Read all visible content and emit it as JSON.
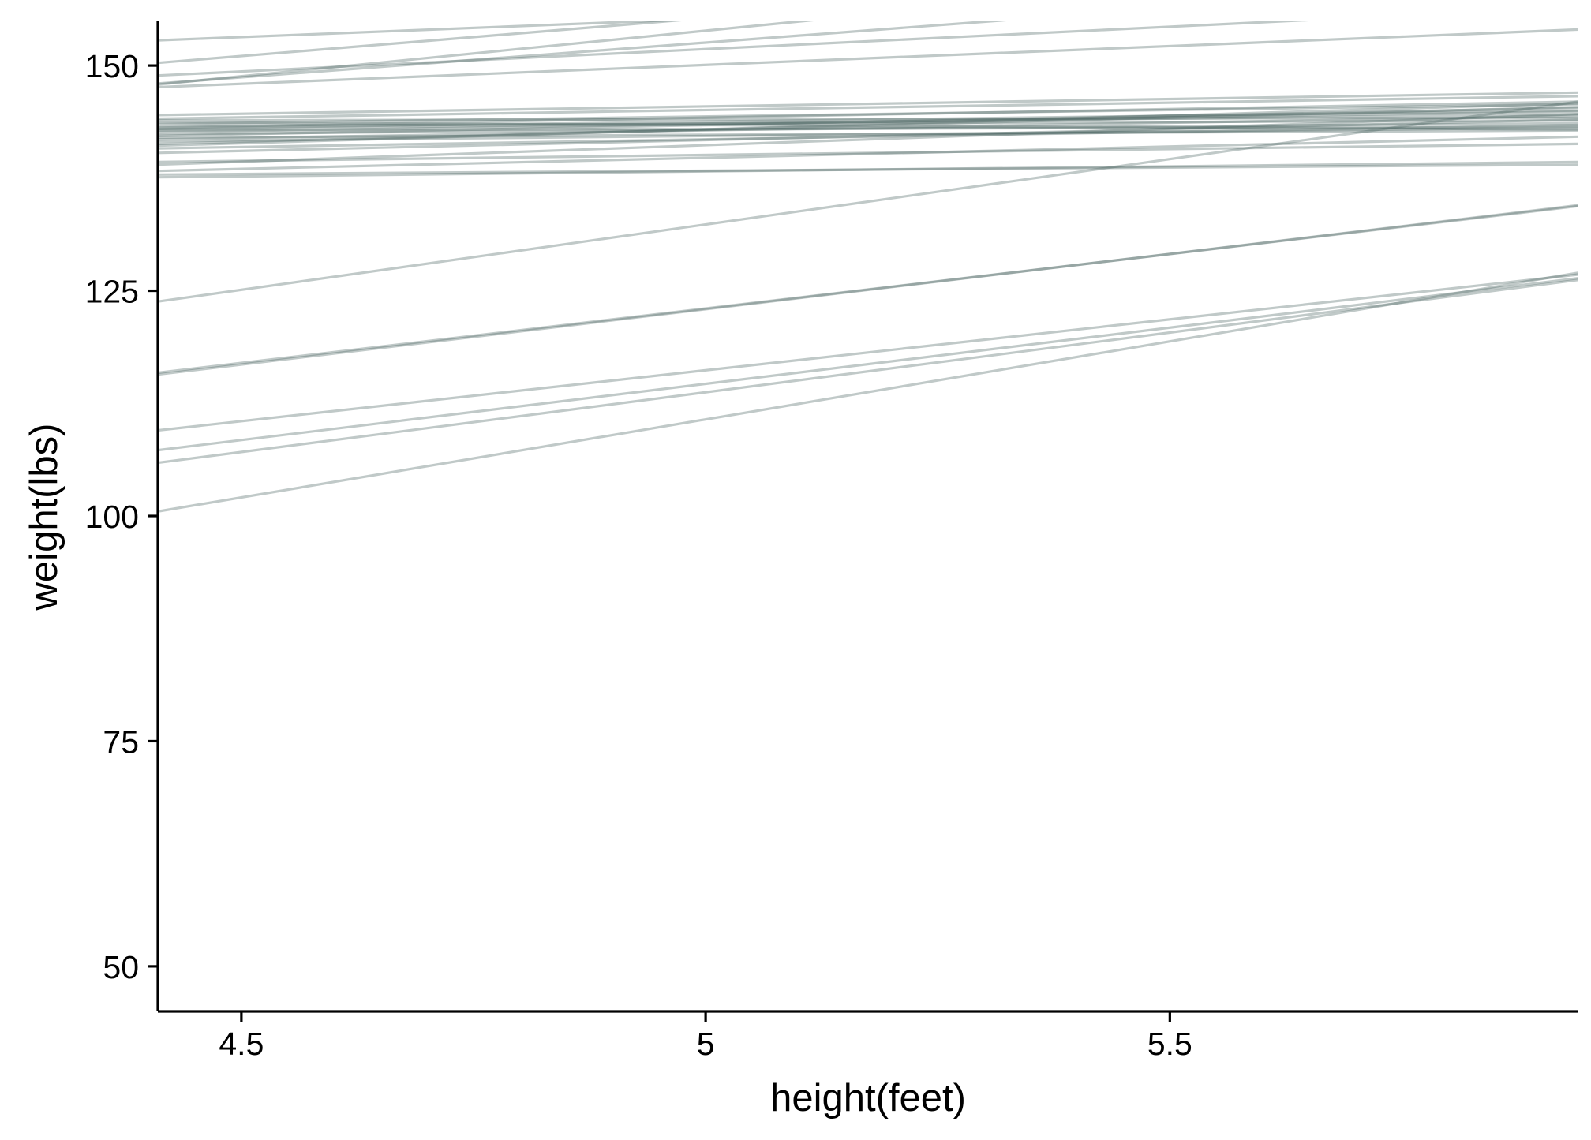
{
  "chart_data": {
    "type": "line",
    "title": "",
    "xlabel": "height(feet)",
    "ylabel": "weight(lbs)",
    "xlim": [
      4.41,
      5.94
    ],
    "ylim": [
      45,
      155
    ],
    "x_ticks": [
      {
        "value": 4.5,
        "label": "4.5"
      },
      {
        "value": 5.0,
        "label": "5"
      },
      {
        "value": 5.5,
        "label": "5.5"
      }
    ],
    "y_ticks": [
      {
        "value": 50,
        "label": "50"
      },
      {
        "value": 75,
        "label": "75"
      },
      {
        "value": 100,
        "label": "100"
      },
      {
        "value": 125,
        "label": "125"
      },
      {
        "value": 150,
        "label": "150"
      }
    ],
    "grid": false,
    "legend": "none",
    "line_color": "#4a6462",
    "line_opacity": 0.35,
    "axis_color": "#000000",
    "note": "",
    "lines": [
      {
        "x": [
          4.41,
          5.94
        ],
        "y": [
          100.5,
          127.0
        ]
      },
      {
        "x": [
          4.41,
          5.94
        ],
        "y": [
          105.9,
          126.2
        ]
      },
      {
        "x": [
          4.41,
          5.94
        ],
        "y": [
          107.3,
          126.4
        ]
      },
      {
        "x": [
          4.41,
          5.94
        ],
        "y": [
          109.5,
          126.8
        ]
      },
      {
        "x": [
          4.41,
          5.94
        ],
        "y": [
          115.7,
          134.5
        ]
      },
      {
        "x": [
          4.41,
          5.94
        ],
        "y": [
          115.9,
          134.4
        ]
      },
      {
        "x": [
          4.41,
          5.94
        ],
        "y": [
          123.8,
          146.0
        ]
      },
      {
        "x": [
          4.41,
          5.94
        ],
        "y": [
          137.6,
          139.3
        ]
      },
      {
        "x": [
          4.41,
          5.94
        ],
        "y": [
          137.9,
          139.0
        ]
      },
      {
        "x": [
          4.41,
          5.94
        ],
        "y": [
          138.3,
          142.1
        ]
      },
      {
        "x": [
          4.41,
          5.94
        ],
        "y": [
          139.0,
          144.6
        ]
      },
      {
        "x": [
          4.41,
          5.94
        ],
        "y": [
          139.3,
          141.3
        ]
      },
      {
        "x": [
          4.41,
          5.94
        ],
        "y": [
          140.3,
          144.0
        ]
      },
      {
        "x": [
          4.41,
          5.94
        ],
        "y": [
          141.3,
          145.4
        ]
      },
      {
        "x": [
          4.41,
          5.94
        ],
        "y": [
          141.6,
          143.1
        ]
      },
      {
        "x": [
          4.41,
          5.94
        ],
        "y": [
          141.8,
          144.4
        ]
      },
      {
        "x": [
          4.41,
          5.94
        ],
        "y": [
          142.0,
          142.8
        ]
      },
      {
        "x": [
          4.41,
          5.94
        ],
        "y": [
          142.2,
          145.3
        ]
      },
      {
        "x": [
          4.41,
          5.94
        ],
        "y": [
          142.4,
          143.6
        ]
      },
      {
        "x": [
          4.41,
          5.94
        ],
        "y": [
          142.6,
          144.9
        ]
      },
      {
        "x": [
          4.41,
          5.94
        ],
        "y": [
          142.8,
          143.2
        ]
      },
      {
        "x": [
          4.41,
          5.94
        ],
        "y": [
          143.0,
          145.0
        ]
      },
      {
        "x": [
          4.41,
          5.94
        ],
        "y": [
          143.1,
          146.0
        ]
      },
      {
        "x": [
          4.41,
          5.94
        ],
        "y": [
          143.3,
          143.9
        ]
      },
      {
        "x": [
          4.41,
          5.94
        ],
        "y": [
          143.5,
          145.7
        ]
      },
      {
        "x": [
          4.41,
          5.94
        ],
        "y": [
          143.7,
          142.9
        ]
      },
      {
        "x": [
          4.41,
          5.94
        ],
        "y": [
          143.9,
          144.2
        ]
      },
      {
        "x": [
          4.41,
          5.94
        ],
        "y": [
          144.1,
          146.6
        ]
      },
      {
        "x": [
          4.41,
          5.94
        ],
        "y": [
          144.5,
          147.0
        ]
      },
      {
        "x": [
          4.41,
          5.94
        ],
        "y": [
          147.6,
          154.0
        ]
      },
      {
        "x": [
          4.41,
          5.94
        ],
        "y": [
          147.9,
          163.4
        ]
      },
      {
        "x": [
          4.41,
          5.94
        ],
        "y": [
          148.0,
          159.8
        ]
      },
      {
        "x": [
          4.41,
          5.94
        ],
        "y": [
          148.9,
          156.5
        ]
      },
      {
        "x": [
          4.41,
          5.94
        ],
        "y": [
          150.3,
          163.2
        ]
      },
      {
        "x": [
          4.41,
          5.94
        ],
        "y": [
          152.8,
          159.0
        ]
      },
      {
        "x": [
          4.41,
          5.94
        ],
        "y": [
          140.8,
          143.4
        ]
      },
      {
        "x": [
          4.41,
          5.94
        ],
        "y": [
          142.9,
          144.6
        ]
      },
      {
        "x": [
          4.41,
          5.94
        ],
        "y": [
          141.1,
          145.8
        ]
      }
    ]
  }
}
